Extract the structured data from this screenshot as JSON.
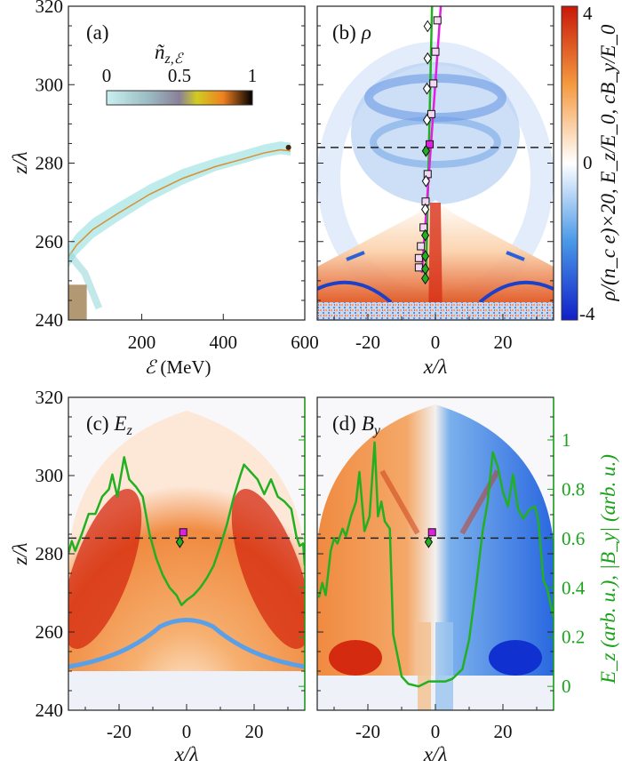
{
  "colors": {
    "green_curve": "#22b022",
    "magenta_curve": "#e020e0",
    "dashed_line": "#222222",
    "green_axis": "#1aa31a",
    "field_positive": "#d42a10",
    "field_negative": "#1040d8"
  },
  "panel_a": {
    "label": "(a)",
    "colorbar_title_main": "ñ",
    "colorbar_title_sub": "z,ℰ",
    "colorbar_ticks": [
      "0",
      "0.5",
      "1"
    ],
    "colormap": [
      "#c8f0f0",
      "#7a7a9a",
      "#d8d020",
      "#f08020",
      "#000000"
    ],
    "xlabel_symbol": "ℰ",
    "xlabel_unit": " (MeV)",
    "ylabel": "z/λ"
  },
  "panel_b": {
    "label": "(b)",
    "symbol": "ρ",
    "xlabel": "x/λ"
  },
  "panel_c": {
    "label": "(c)",
    "symbol_main": "E",
    "symbol_sub": "z",
    "xlabel": "x/λ",
    "ylabel": "z/λ"
  },
  "panel_d": {
    "label": "(d)",
    "symbol_main": "B",
    "symbol_sub": "y",
    "xlabel": "x/λ"
  },
  "field_colorbar": {
    "ticks": [
      "4",
      "0",
      "-4"
    ],
    "label": "ρ/(n_c e)×20, E_z/E_0, cB_y/E_0",
    "colormap": [
      "#1030d0",
      "#ffffff",
      "#d02010"
    ],
    "range": [
      -4,
      4
    ]
  },
  "green_axis": {
    "ticks": [
      "0",
      "0.2",
      "0.4",
      "0.6",
      "0.8",
      "1"
    ],
    "label": "E_z (arb. u.), |B_y| (arb. u.)"
  },
  "chart_data": [
    {
      "panel": "a",
      "type": "heatmap",
      "xlabel": "ℰ (MeV)",
      "ylabel": "z/λ",
      "xlim": [
        20,
        600
      ],
      "ylim": [
        240,
        320
      ],
      "xticks": [
        "200",
        "400",
        "600"
      ],
      "yticks": [
        "240",
        "260",
        "280",
        "300",
        "320"
      ],
      "dashed_line_z": 284,
      "spectrum_ridge": {
        "energy_MeV": [
          20,
          40,
          80,
          140,
          220,
          300,
          380,
          450,
          500,
          540,
          565
        ],
        "z": [
          257,
          260,
          264,
          268,
          273,
          277,
          280,
          282,
          283.5,
          284.3,
          284
        ]
      },
      "low_energy_patch": {
        "energy_MeV": [
          20,
          65
        ],
        "z": [
          240,
          249
        ]
      }
    },
    {
      "panel": "b",
      "type": "heatmap",
      "quantity": "ρ",
      "xlabel": "x/λ",
      "xlim": [
        -35,
        35
      ],
      "ylim": [
        240,
        320
      ],
      "xticks": [
        "-20",
        "0",
        "20"
      ],
      "dashed_line_z": 284,
      "green_line": {
        "x": [
          -2.8,
          -1
        ],
        "z": [
          250,
          320
        ]
      },
      "magenta_line": {
        "x": [
          -4,
          1.6
        ],
        "z": [
          252,
          320
        ]
      },
      "diamonds": {
        "x": [
          -2.3,
          -2.3,
          -2.5,
          -2.5,
          -2.8,
          -2.8,
          -3.0,
          -3.0,
          -3.0,
          -3.0,
          -3.0
        ],
        "z": [
          314.9,
          306.7,
          299,
          291,
          283.1,
          275.4,
          268.2,
          261.6,
          256.3,
          253,
          250.6
        ],
        "filled": [
          false,
          false,
          false,
          false,
          true,
          false,
          false,
          true,
          true,
          true,
          true
        ]
      },
      "squares": {
        "x": [
          0.6,
          0,
          -0.6,
          -1.2,
          -1.7,
          -2.3,
          -2.9,
          -3.5,
          -4.3,
          -4.9,
          -4.9
        ],
        "z": [
          316.4,
          308.4,
          300.3,
          292.5,
          284.8,
          277.2,
          270.2,
          263.6,
          258.8,
          255.8,
          253.4
        ],
        "filled": [
          false,
          false,
          false,
          false,
          true,
          false,
          false,
          false,
          false,
          false,
          false
        ]
      }
    },
    {
      "panel": "c",
      "type": "line",
      "quantity": "E_z",
      "xlabel": "x/λ",
      "ylabel": "z/λ",
      "xlim": [
        -35,
        35
      ],
      "ylim": [
        240,
        320
      ],
      "y2lim": [
        -0.1,
        1.2
      ],
      "xticks": [
        "-20",
        "0",
        "20"
      ],
      "yticks": [
        "240",
        "260",
        "280",
        "300",
        "320"
      ],
      "dashed_line_z": 284,
      "markers": {
        "square": [
          -1,
          285.5
        ],
        "diamond": [
          -2,
          283
        ]
      },
      "profile": {
        "x": [
          -35,
          -34,
          -33,
          -31,
          -29,
          -27,
          -25,
          -23,
          -22,
          -20.5,
          -18.5,
          -17,
          -15,
          -13,
          -11,
          -9,
          -7,
          -5,
          -3,
          -1.5,
          0,
          2,
          4,
          6,
          8,
          10,
          12,
          14,
          16,
          17,
          19,
          21,
          23,
          25,
          27,
          29,
          31,
          32.5,
          33.5,
          34.5,
          35
        ],
        "y": [
          0.54,
          0.59,
          0.55,
          0.62,
          0.7,
          0.7,
          0.77,
          0.8,
          0.86,
          0.77,
          0.93,
          0.84,
          0.81,
          0.77,
          0.62,
          0.52,
          0.45,
          0.4,
          0.37,
          0.33,
          0.35,
          0.37,
          0.4,
          0.44,
          0.49,
          0.57,
          0.66,
          0.77,
          0.86,
          0.9,
          0.87,
          0.84,
          0.78,
          0.84,
          0.77,
          0.75,
          0.72,
          0.61,
          0.57,
          0.58,
          0.49
        ]
      }
    },
    {
      "panel": "d",
      "type": "line",
      "quantity": "|B_y|",
      "xlabel": "x/λ",
      "xlim": [
        -35,
        35
      ],
      "ylim": [
        240,
        320
      ],
      "y2lim": [
        -0.1,
        1.2
      ],
      "xticks": [
        "-20",
        "0",
        "20"
      ],
      "y2ticks": [
        "0",
        "0.2",
        "0.4",
        "0.6",
        "0.8",
        "1"
      ],
      "y2label": "E_z (arb. u.), |B_y| (arb. u.)",
      "dashed_line_z": 284,
      "markers": {
        "square": [
          -1,
          285.5
        ],
        "diamond": [
          -2,
          283
        ]
      },
      "profile": {
        "x": [
          -34.5,
          -33.5,
          -32.5,
          -31,
          -30,
          -29,
          -27.5,
          -26.5,
          -25,
          -23.5,
          -22.5,
          -21,
          -19.5,
          -18,
          -17,
          -16,
          -15,
          -13.5,
          -12.5,
          -11,
          -10,
          -8,
          -5,
          -2,
          1,
          3,
          5,
          8,
          10,
          12,
          14,
          15.5,
          17,
          18.5,
          20,
          21.5,
          23,
          24.5,
          26,
          28,
          29.5,
          30.5,
          32,
          33,
          35
        ],
        "y": [
          0.36,
          0.42,
          0.37,
          0.55,
          0.6,
          0.58,
          0.64,
          0.61,
          0.69,
          0.75,
          0.87,
          0.63,
          0.69,
          0.99,
          0.69,
          0.75,
          0.67,
          0.64,
          0.21,
          0.11,
          0.04,
          0.01,
          0.0,
          0.02,
          0.02,
          0.02,
          0.03,
          0.07,
          0.19,
          0.4,
          0.63,
          0.75,
          0.95,
          0.89,
          0.79,
          0.73,
          0.86,
          0.72,
          0.68,
          0.72,
          0.73,
          0.67,
          0.43,
          0.4,
          0.28
        ]
      }
    }
  ]
}
